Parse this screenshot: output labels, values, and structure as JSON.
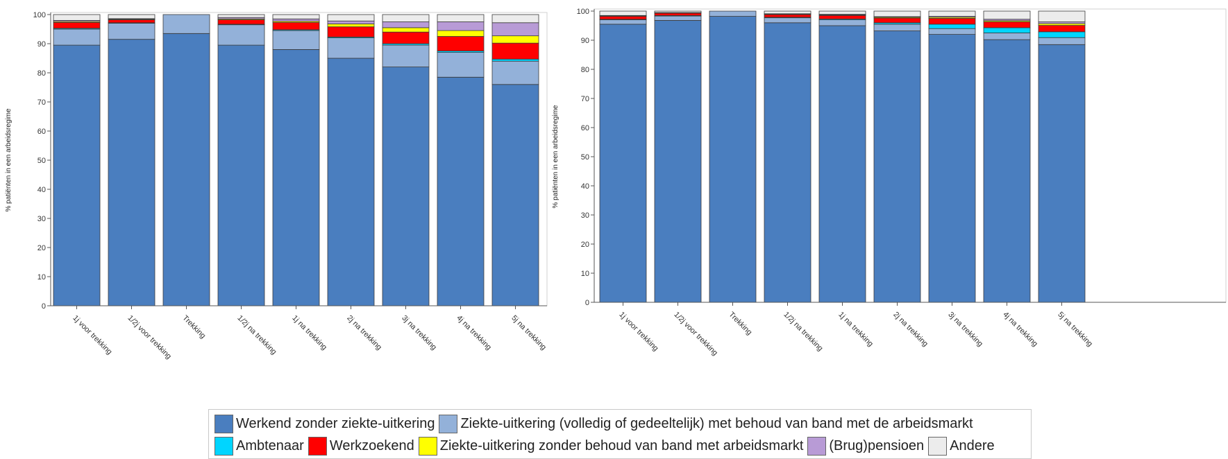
{
  "legend": [
    {
      "label": "Werkend zonder ziekte-uitkering",
      "color": "#4a7ebf"
    },
    {
      "label": "Ziekte-uitkering (volledig of gedeeltelijk) met behoud van band met de arbeidsmarkt",
      "color": "#93b1d9"
    },
    {
      "label": "Ambtenaar",
      "color": "#00d5ff"
    },
    {
      "label": "Werkzoekend",
      "color": "#ff0000"
    },
    {
      "label": "Ziekte-uitkering zonder behoud van band met arbeidsmarkt",
      "color": "#ffff00"
    },
    {
      "label": "(Brug)pensioen",
      "color": "#b89bd6"
    },
    {
      "label": "Andere",
      "color": "#ececec"
    }
  ],
  "chart_data": [
    {
      "type": "bar",
      "stacked": true,
      "ylabel": "% patiënten in een arbeidsregime",
      "ylim": [
        0,
        100
      ],
      "yticks": [
        0,
        10,
        20,
        30,
        40,
        50,
        60,
        70,
        80,
        90,
        100
      ],
      "categories": [
        "1j voor trekking",
        "1/2j voor trekking",
        "Trekking",
        "1/2j na trekking",
        "1j na trekking",
        "2j na trekking",
        "3j na trekking",
        "4j na trekking",
        "5j na trekking"
      ],
      "series": [
        {
          "name": "Werkend zonder ziekte-uitkering",
          "values": [
            89.5,
            91.5,
            93.5,
            89.5,
            88.0,
            85.0,
            82.0,
            78.5,
            76.0
          ]
        },
        {
          "name": "Ziekte-uitkering (volledig of gedeeltelijk) met behoud van band met de arbeidsmarkt",
          "values": [
            5.5,
            5.5,
            6.5,
            7.0,
            6.5,
            7.0,
            7.5,
            8.5,
            8.0
          ]
        },
        {
          "name": "Ambtenaar",
          "values": [
            0.3,
            0.2,
            0,
            0.2,
            0.3,
            0.3,
            0.5,
            0.5,
            0.7
          ]
        },
        {
          "name": "Werkzoekend",
          "values": [
            2.0,
            1.0,
            0,
            1.5,
            2.5,
            3.5,
            4.0,
            5.0,
            5.5
          ]
        },
        {
          "name": "Ziekte-uitkering zonder behoud van band met arbeidsmarkt",
          "values": [
            0.3,
            0.2,
            0,
            0.3,
            0.4,
            1.0,
            1.5,
            2.0,
            2.5
          ]
        },
        {
          "name": "(Brug)pensioen",
          "values": [
            0.4,
            0.2,
            0,
            0.5,
            0.8,
            1.0,
            2.0,
            3.0,
            4.5
          ]
        },
        {
          "name": "Andere",
          "values": [
            2.0,
            1.4,
            0,
            1.0,
            1.5,
            2.2,
            2.5,
            2.5,
            2.8
          ]
        }
      ]
    },
    {
      "type": "bar",
      "stacked": true,
      "ylabel": "% patiënten in een arbeidsregime",
      "ylim": [
        0,
        100
      ],
      "yticks": [
        0,
        10,
        20,
        30,
        40,
        50,
        60,
        70,
        80,
        90,
        100
      ],
      "categories": [
        "1j voor trekking",
        "1/2j voor trekking",
        "Trekking",
        "1/2j na trekking",
        "1j na trekking",
        "2j na trekking",
        "3j na trekking",
        "4j na trekking",
        "5j na trekking"
      ],
      "series": [
        {
          "name": "Werkend zonder ziekte-uitkering",
          "values": [
            95.5,
            96.8,
            98.2,
            96.0,
            95.0,
            93.2,
            92.0,
            90.2,
            88.5
          ]
        },
        {
          "name": "Ziekte-uitkering (volledig of gedeeltelijk) met behoud van band met de arbeidsmarkt",
          "values": [
            1.5,
            1.5,
            1.8,
            1.7,
            2.0,
            2.3,
            2.0,
            2.3,
            2.4
          ]
        },
        {
          "name": "Ambtenaar",
          "values": [
            0.2,
            0.2,
            0,
            0.2,
            0.3,
            0.5,
            1.5,
            1.8,
            2.0
          ]
        },
        {
          "name": "Werkzoekend",
          "values": [
            1.0,
            0.8,
            0,
            0.9,
            1.2,
            1.6,
            2.0,
            2.0,
            2.2
          ]
        },
        {
          "name": "Ziekte-uitkering zonder behoud van band met arbeidsmarkt",
          "values": [
            0.2,
            0.1,
            0,
            0.2,
            0.2,
            0.3,
            0.4,
            0.4,
            0.6
          ]
        },
        {
          "name": "(Brug)pensioen",
          "values": [
            0.1,
            0.1,
            0,
            0.1,
            0.2,
            0.2,
            0.3,
            0.5,
            0.6
          ]
        },
        {
          "name": "Andere",
          "values": [
            1.5,
            0.5,
            0,
            0.9,
            1.1,
            1.9,
            1.8,
            2.8,
            3.7
          ]
        }
      ]
    }
  ]
}
